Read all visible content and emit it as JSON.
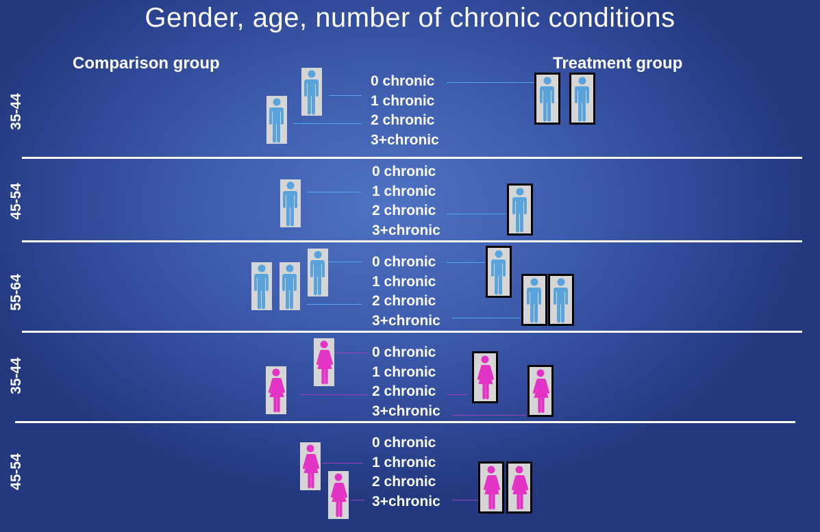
{
  "title": "Gender, age, number of chronic conditions",
  "comparison_label": "Comparison group",
  "treatment_label": "Treatment group",
  "colors": {
    "male": "#5ba3dc",
    "female": "#e233c4",
    "tile": "#d6d6d6",
    "frame": "#000000",
    "line_blue": "#4fa8e8",
    "line_purple": "#9a3fc0"
  },
  "icons": {
    "male": "male-person-icon",
    "female": "female-person-icon"
  },
  "sections": [
    {
      "age": "35-44",
      "gender": "male",
      "rows": [
        "0 chronic",
        "1 chronic",
        "2 chronic",
        "3+chronic"
      ],
      "comparison_figures": 2,
      "treatment_figures": 2
    },
    {
      "age": "45-54",
      "gender": "male",
      "rows": [
        "0 chronic",
        "1 chronic",
        "2 chronic",
        "3+chronic"
      ],
      "comparison_figures": 1,
      "treatment_figures": 1
    },
    {
      "age": "55-64",
      "gender": "male",
      "rows": [
        "0 chronic",
        "1 chronic",
        "2 chronic",
        "3+chronic"
      ],
      "comparison_figures": 3,
      "treatment_figures": 3
    },
    {
      "age": "35-44",
      "gender": "female",
      "rows": [
        "0 chronic",
        "1 chronic",
        "2 chronic",
        "3+chronic"
      ],
      "comparison_figures": 2,
      "treatment_figures": 2
    },
    {
      "age": "45-54",
      "gender": "female",
      "rows": [
        "0 chronic",
        "1 chronic",
        "2 chronic",
        "3+chronic"
      ],
      "comparison_figures": 2,
      "treatment_figures": 2
    }
  ]
}
